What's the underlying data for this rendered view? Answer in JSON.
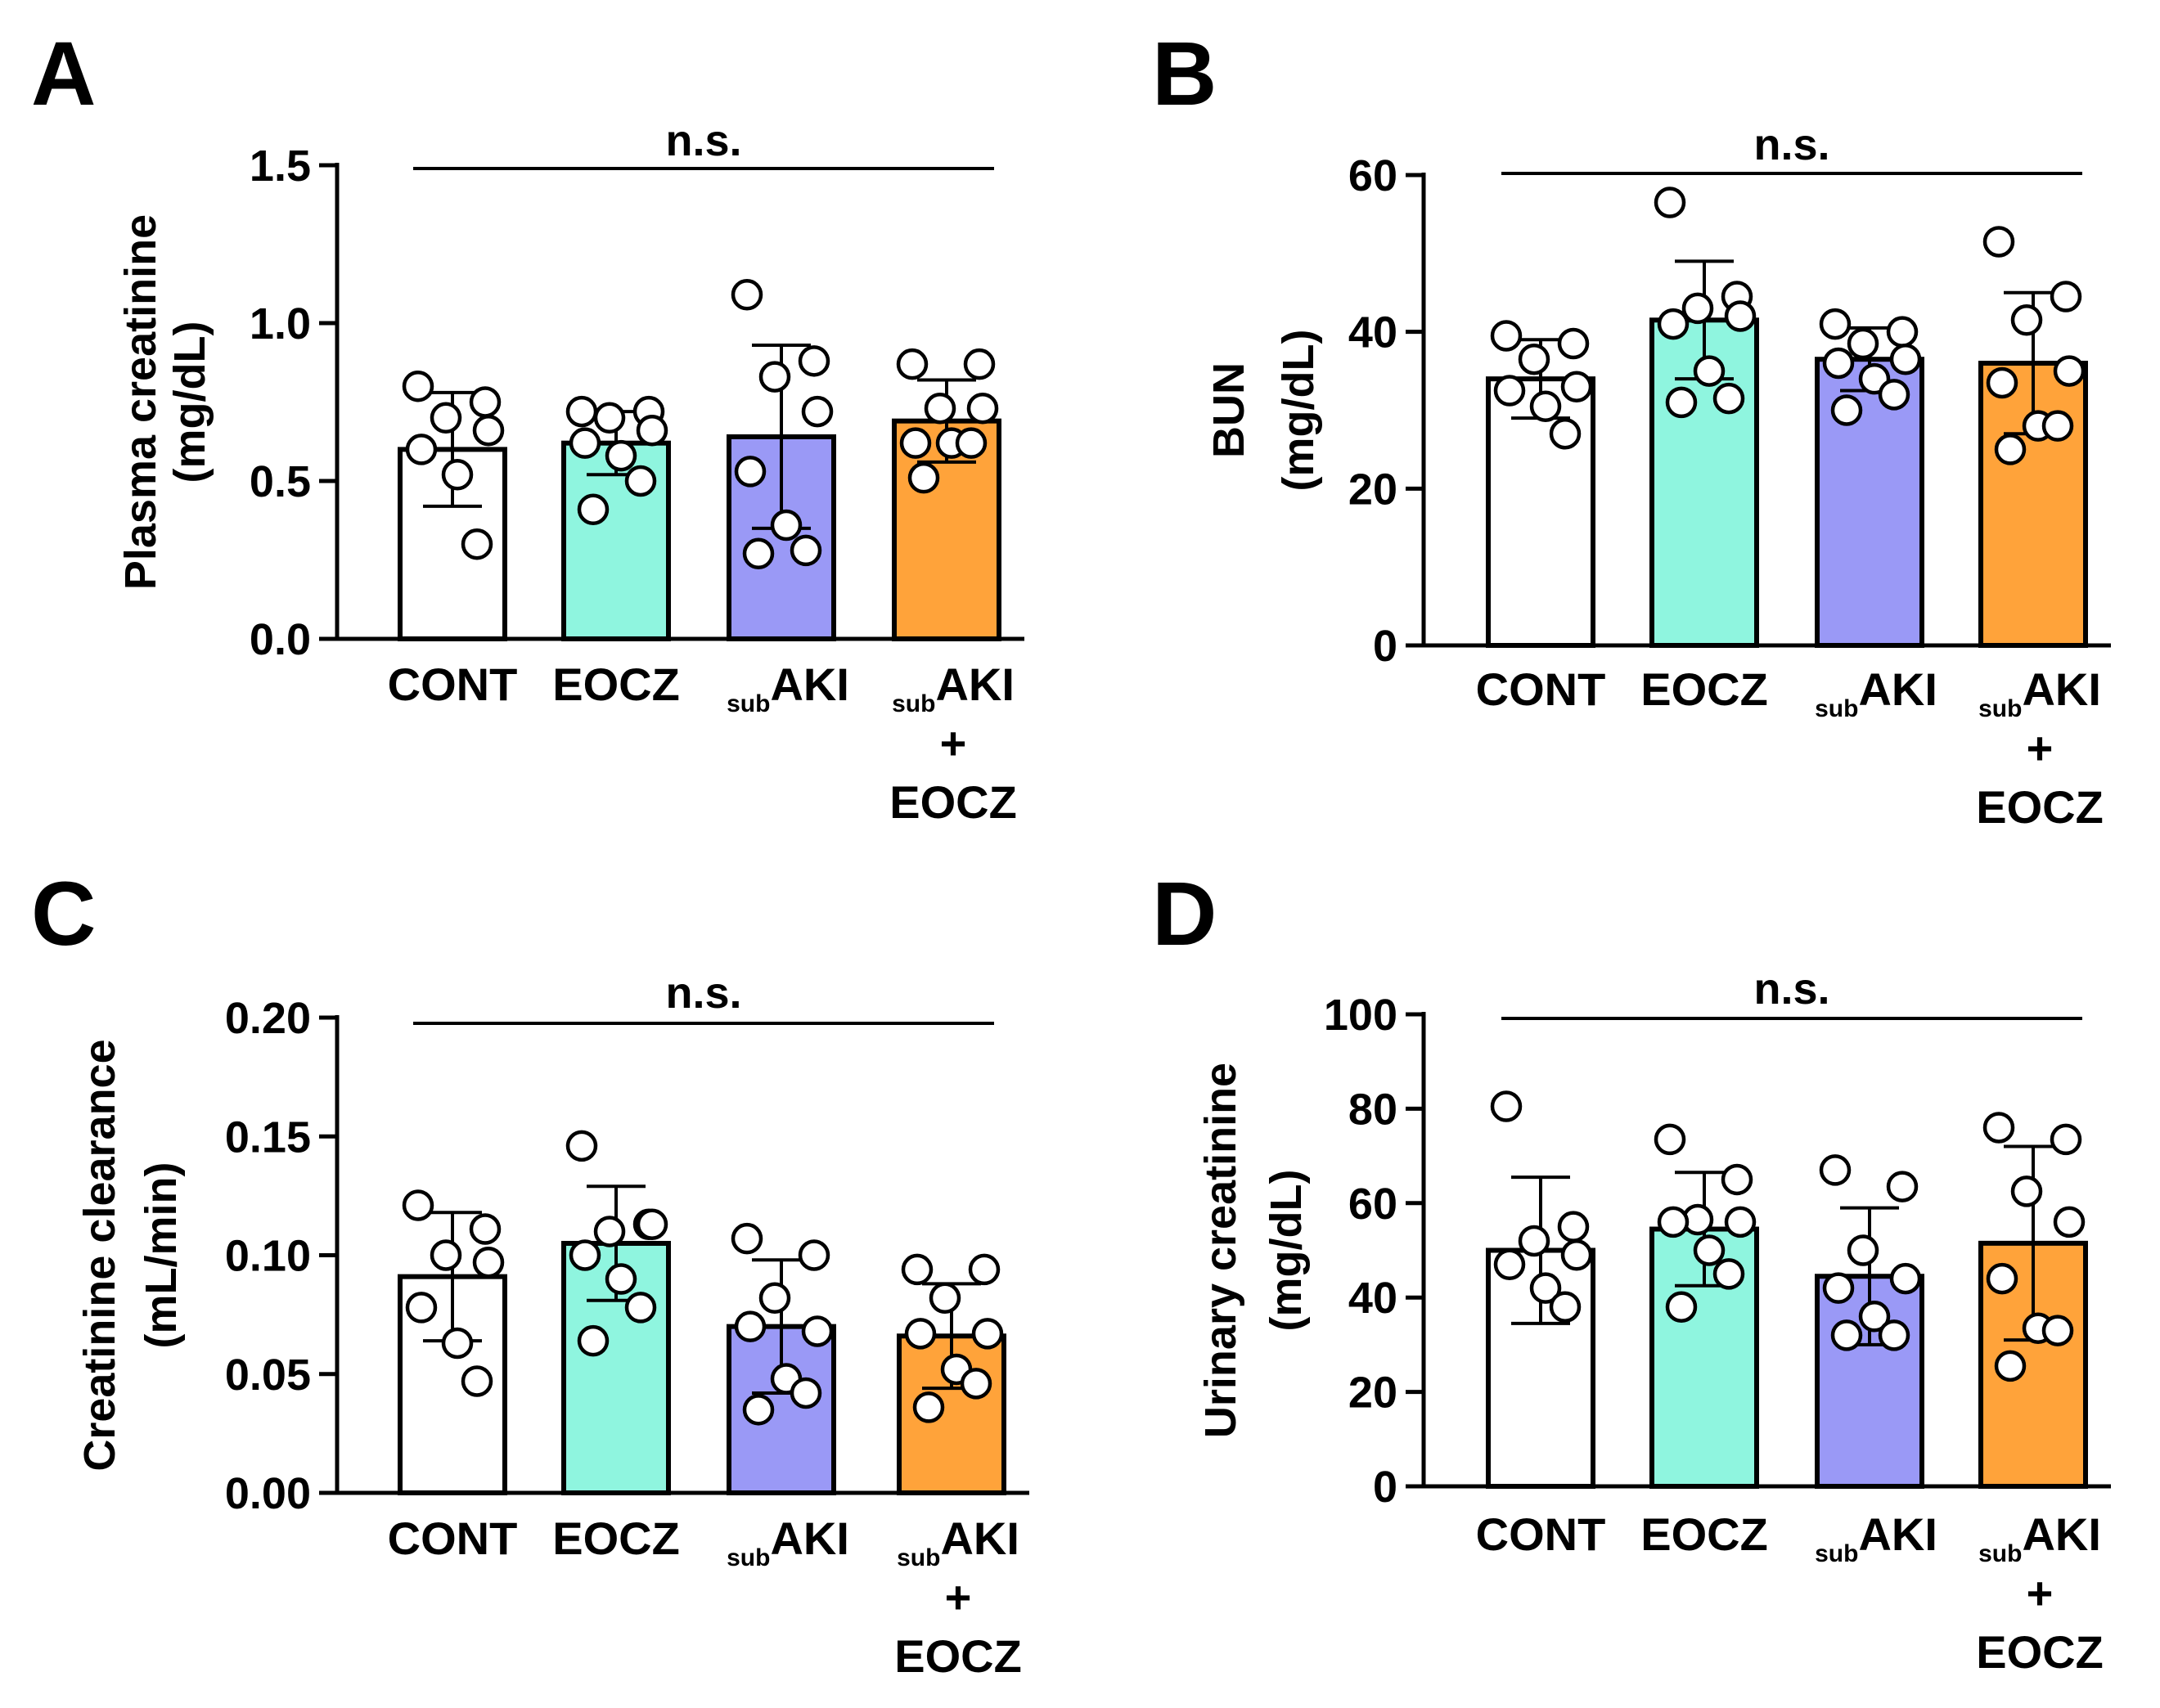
{
  "figure": {
    "colors": {
      "CONT": "#ffffff",
      "EOCZ": "#8ff5df",
      "subAKI": "#9a99f6",
      "subAKI+EOCZ": "#ffa33a",
      "stroke": "#000000"
    }
  },
  "chart_data": [
    {
      "panel": "A",
      "type": "bar",
      "ylabel_line1": "Plasma creatinine",
      "ylabel_line2": "(mg/dL)",
      "ylim": [
        0,
        1.5
      ],
      "yticks": [
        "0.0",
        "0.5",
        "1.0",
        "1.5"
      ],
      "significance": "n.s.",
      "categories": [
        {
          "pre": "",
          "main": "CONT",
          "lines": []
        },
        {
          "pre": "",
          "main": "EOCZ",
          "lines": []
        },
        {
          "pre": "sub",
          "main": "AKI",
          "lines": []
        },
        {
          "pre": "sub",
          "main": "AKI",
          "lines": [
            "+",
            "EOCZ"
          ]
        }
      ],
      "values": [
        0.6,
        0.62,
        0.64,
        0.69
      ],
      "errors": [
        0.18,
        0.1,
        0.29,
        0.13
      ],
      "points": [
        [
          0.8,
          0.75,
          0.7,
          0.66,
          0.6,
          0.52,
          0.3
        ],
        [
          0.72,
          0.72,
          0.7,
          0.66,
          0.62,
          0.58,
          0.5,
          0.41
        ],
        [
          1.09,
          0.88,
          0.83,
          0.72,
          0.53,
          0.36,
          0.28,
          0.27
        ],
        [
          0.87,
          0.87,
          0.73,
          0.73,
          0.62,
          0.62,
          0.62,
          0.51
        ]
      ]
    },
    {
      "panel": "B",
      "type": "bar",
      "ylabel_line1": "BUN",
      "ylabel_line2": "(mg/dL)",
      "ylim": [
        0,
        60
      ],
      "yticks": [
        "0",
        "20",
        "40",
        "60"
      ],
      "significance": "n.s.",
      "categories": [
        {
          "pre": "",
          "main": "CONT",
          "lines": []
        },
        {
          "pre": "",
          "main": "EOCZ",
          "lines": []
        },
        {
          "pre": "sub",
          "main": "AKI",
          "lines": []
        },
        {
          "pre": "sub",
          "main": "AKI",
          "lines": [
            "+",
            "EOCZ"
          ]
        }
      ],
      "values": [
        34,
        41.5,
        36.5,
        36
      ],
      "errors": [
        5,
        7.5,
        4,
        9
      ],
      "points": [
        [
          39.5,
          38.5,
          36.5,
          33,
          32.5,
          30.5,
          27
        ],
        [
          56.5,
          44.5,
          43,
          42,
          41,
          35,
          31.5,
          31
        ],
        [
          41,
          40,
          38.5,
          36.5,
          36,
          34,
          32,
          30
        ],
        [
          51.5,
          44.5,
          41.5,
          35,
          33.5,
          28,
          28,
          25
        ]
      ]
    },
    {
      "panel": "C",
      "type": "bar",
      "ylabel_line1": "Creatinine clearance",
      "ylabel_line2": "(mL/min)",
      "ylim": [
        0,
        0.2
      ],
      "yticks": [
        "0.00",
        "0.05",
        "0.10",
        "0.15",
        "0.20"
      ],
      "significance": "n.s.",
      "categories": [
        {
          "pre": "",
          "main": "CONT",
          "lines": []
        },
        {
          "pre": "",
          "main": "EOCZ",
          "lines": []
        },
        {
          "pre": "sub",
          "main": "AKI",
          "lines": []
        },
        {
          "pre": "sub",
          "main": "AKI",
          "lines": [
            "+",
            "EOCZ"
          ]
        }
      ],
      "values": [
        0.091,
        0.105,
        0.07,
        0.066
      ],
      "errors": [
        0.027,
        0.024,
        0.028,
        0.022
      ],
      "points": [
        [
          0.121,
          0.111,
          0.1,
          0.097,
          0.078,
          0.063,
          0.047
        ],
        [
          0.146,
          0.113,
          0.11,
          0.113,
          0.1,
          0.09,
          0.078,
          0.064
        ],
        [
          0.107,
          0.1,
          0.082,
          0.068,
          0.07,
          0.048,
          0.042,
          0.035
        ],
        [
          0.094,
          0.094,
          0.082,
          0.067,
          0.067,
          0.052,
          0.046,
          0.036
        ]
      ]
    },
    {
      "panel": "D",
      "type": "bar",
      "ylabel_line1": "Urinary creatinine",
      "ylabel_line2": "(mg/dL)",
      "ylim": [
        0,
        100
      ],
      "yticks": [
        "0",
        "20",
        "40",
        "60",
        "80",
        "100"
      ],
      "significance": "n.s.",
      "categories": [
        {
          "pre": "",
          "main": "CONT",
          "lines": []
        },
        {
          "pre": "",
          "main": "EOCZ",
          "lines": []
        },
        {
          "pre": "sub",
          "main": "AKI",
          "lines": []
        },
        {
          "pre": "sub",
          "main": "AKI",
          "lines": [
            "+",
            "EOCZ"
          ]
        }
      ],
      "values": [
        50,
        54.5,
        44.5,
        51.5
      ],
      "errors": [
        15.5,
        12,
        14.5,
        20.5
      ],
      "points": [
        [
          80.5,
          55,
          52,
          49,
          47,
          42,
          38
        ],
        [
          73.5,
          65,
          56.5,
          56,
          56,
          50,
          45,
          38
        ],
        [
          67,
          63.5,
          50,
          44,
          42,
          36,
          32,
          32
        ],
        [
          76,
          73.5,
          62.5,
          56,
          44,
          33.5,
          33,
          25.5
        ]
      ]
    }
  ]
}
